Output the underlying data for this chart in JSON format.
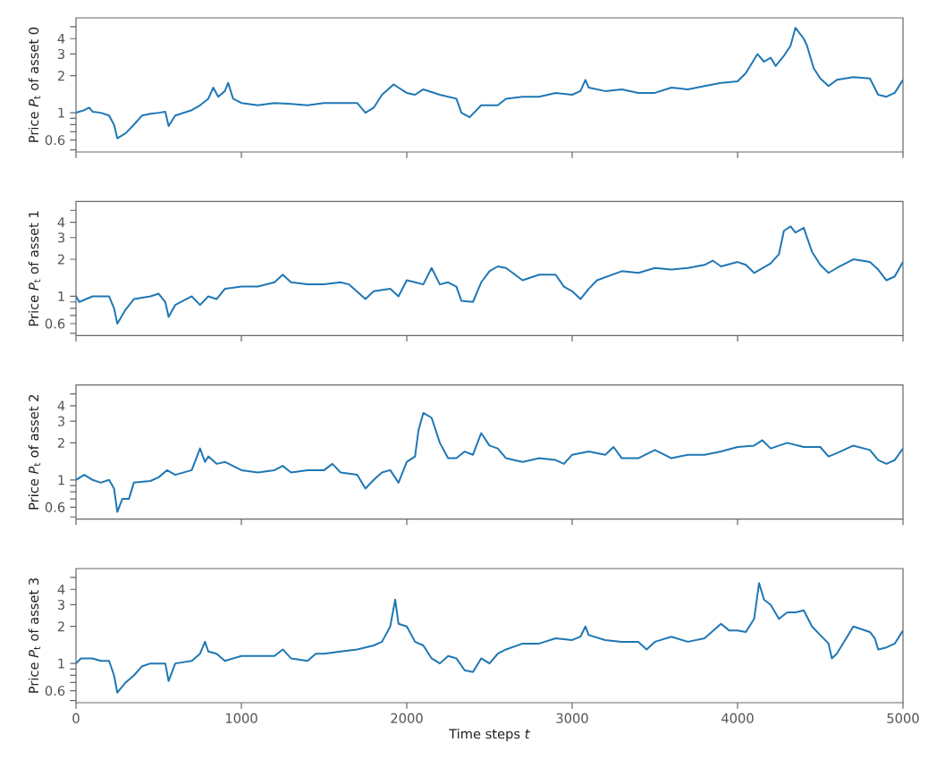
{
  "chart_data": [
    {
      "type": "line",
      "ylabel": "Price *P*$_{t}$ of asset 0",
      "color": "#1f77b4",
      "log": "y",
      "tick_labels": "y",
      "xlim": [
        0,
        5000
      ],
      "xticks": [
        0,
        1000,
        2000,
        3000,
        4000,
        5000
      ],
      "ylim": [
        0.48,
        5.9
      ],
      "yticks": [
        {
          "value": 0.5,
          "label": null
        },
        0.6,
        {
          "value": 0.7,
          "label": null
        },
        {
          "value": 0.8,
          "label": null
        },
        {
          "value": 0.9,
          "label": null
        },
        1,
        2,
        3,
        4,
        {
          "value": 5,
          "label": null
        }
      ],
      "x": [
        0,
        50,
        80,
        100,
        150,
        200,
        230,
        250,
        300,
        350,
        400,
        450,
        500,
        540,
        560,
        600,
        700,
        750,
        800,
        830,
        860,
        900,
        920,
        950,
        1000,
        1100,
        1200,
        1300,
        1400,
        1500,
        1600,
        1700,
        1750,
        1800,
        1850,
        1920,
        1950,
        2000,
        2050,
        2100,
        2200,
        2300,
        2330,
        2380,
        2450,
        2550,
        2600,
        2700,
        2800,
        2900,
        3000,
        3050,
        3080,
        3100,
        3200,
        3300,
        3400,
        3500,
        3600,
        3700,
        3800,
        3900,
        4000,
        4050,
        4120,
        4160,
        4200,
        4230,
        4280,
        4320,
        4350,
        4400,
        4420,
        4460,
        4500,
        4550,
        4600,
        4700,
        4800,
        4850,
        4900,
        4950,
        5000
      ],
      "values": [
        1.0,
        1.05,
        1.1,
        1.02,
        1.0,
        0.95,
        0.8,
        0.62,
        0.68,
        0.8,
        0.95,
        0.98,
        1.0,
        1.02,
        0.78,
        0.95,
        1.05,
        1.15,
        1.3,
        1.6,
        1.35,
        1.5,
        1.75,
        1.3,
        1.2,
        1.15,
        1.2,
        1.18,
        1.15,
        1.2,
        1.2,
        1.2,
        1.0,
        1.1,
        1.4,
        1.7,
        1.6,
        1.45,
        1.4,
        1.55,
        1.4,
        1.3,
        1.0,
        0.92,
        1.15,
        1.15,
        1.3,
        1.35,
        1.35,
        1.45,
        1.4,
        1.5,
        1.85,
        1.6,
        1.5,
        1.55,
        1.45,
        1.45,
        1.6,
        1.55,
        1.65,
        1.75,
        1.8,
        2.1,
        3.0,
        2.6,
        2.8,
        2.4,
        2.9,
        3.5,
        4.9,
        4.0,
        3.5,
        2.3,
        1.9,
        1.65,
        1.85,
        1.95,
        1.9,
        1.4,
        1.35,
        1.45,
        1.85
      ]
    },
    {
      "type": "line",
      "ylabel": "Price *P*$_{t}$ of asset 1",
      "color": "#1f77b4",
      "log": "y",
      "tick_labels": "y",
      "xlim": [
        0,
        5000
      ],
      "xticks": [
        0,
        1000,
        2000,
        3000,
        4000,
        5000
      ],
      "ylim": [
        0.48,
        5.9
      ],
      "yticks": [
        {
          "value": 0.5,
          "label": null
        },
        0.6,
        {
          "value": 0.7,
          "label": null
        },
        {
          "value": 0.8,
          "label": null
        },
        {
          "value": 0.9,
          "label": null
        },
        1,
        2,
        3,
        4,
        {
          "value": 5,
          "label": null
        }
      ],
      "x": [
        0,
        20,
        100,
        200,
        230,
        250,
        300,
        350,
        450,
        500,
        540,
        560,
        600,
        700,
        750,
        800,
        850,
        900,
        1000,
        1100,
        1200,
        1250,
        1300,
        1400,
        1500,
        1600,
        1650,
        1750,
        1800,
        1900,
        1950,
        2000,
        2050,
        2100,
        2150,
        2200,
        2250,
        2300,
        2330,
        2400,
        2450,
        2500,
        2550,
        2600,
        2700,
        2800,
        2900,
        2950,
        3000,
        3050,
        3100,
        3150,
        3300,
        3400,
        3500,
        3600,
        3700,
        3800,
        3850,
        3900,
        4000,
        4050,
        4100,
        4200,
        4250,
        4280,
        4320,
        4350,
        4400,
        4450,
        4500,
        4550,
        4600,
        4700,
        4800,
        4850,
        4900,
        4950,
        5000
      ],
      "values": [
        1.0,
        0.9,
        1.0,
        1.0,
        0.8,
        0.6,
        0.78,
        0.95,
        1.0,
        1.05,
        0.9,
        0.68,
        0.85,
        1.0,
        0.85,
        1.0,
        0.95,
        1.15,
        1.2,
        1.2,
        1.3,
        1.5,
        1.3,
        1.25,
        1.25,
        1.3,
        1.25,
        0.95,
        1.1,
        1.15,
        1.0,
        1.35,
        1.3,
        1.25,
        1.7,
        1.25,
        1.3,
        1.2,
        0.92,
        0.9,
        1.3,
        1.6,
        1.75,
        1.7,
        1.35,
        1.5,
        1.5,
        1.2,
        1.1,
        0.95,
        1.15,
        1.35,
        1.6,
        1.55,
        1.7,
        1.65,
        1.7,
        1.8,
        1.95,
        1.75,
        1.9,
        1.8,
        1.55,
        1.85,
        2.2,
        3.4,
        3.7,
        3.3,
        3.6,
        2.3,
        1.8,
        1.55,
        1.7,
        2.0,
        1.9,
        1.65,
        1.35,
        1.45,
        1.9
      ]
    },
    {
      "type": "line",
      "ylabel": "Price *P*$_{t}$ of asset 2",
      "color": "#1f77b4",
      "log": "y",
      "tick_labels": "y",
      "xlim": [
        0,
        5000
      ],
      "xticks": [
        0,
        1000,
        2000,
        3000,
        4000,
        5000
      ],
      "ylim": [
        0.48,
        5.9
      ],
      "yticks": [
        {
          "value": 0.5,
          "label": null
        },
        0.6,
        {
          "value": 0.7,
          "label": null
        },
        {
          "value": 0.8,
          "label": null
        },
        {
          "value": 0.9,
          "label": null
        },
        1,
        2,
        3,
        4,
        {
          "value": 5,
          "label": null
        }
      ],
      "x": [
        0,
        50,
        100,
        150,
        200,
        230,
        250,
        280,
        320,
        350,
        450,
        500,
        550,
        600,
        700,
        750,
        780,
        800,
        850,
        900,
        1000,
        1100,
        1200,
        1250,
        1300,
        1400,
        1500,
        1550,
        1600,
        1700,
        1750,
        1800,
        1850,
        1900,
        1950,
        2000,
        2050,
        2070,
        2100,
        2150,
        2200,
        2250,
        2300,
        2350,
        2400,
        2450,
        2500,
        2550,
        2600,
        2700,
        2800,
        2900,
        2950,
        3000,
        3100,
        3200,
        3250,
        3300,
        3400,
        3500,
        3600,
        3700,
        3800,
        3900,
        4000,
        4100,
        4150,
        4200,
        4300,
        4400,
        4500,
        4550,
        4600,
        4700,
        4800,
        4850,
        4900,
        4950,
        5000
      ],
      "values": [
        1.0,
        1.1,
        1.0,
        0.95,
        1.0,
        0.85,
        0.55,
        0.7,
        0.7,
        0.95,
        0.98,
        1.05,
        1.2,
        1.1,
        1.2,
        1.8,
        1.4,
        1.55,
        1.35,
        1.4,
        1.2,
        1.15,
        1.2,
        1.3,
        1.15,
        1.2,
        1.2,
        1.35,
        1.15,
        1.1,
        0.85,
        1.0,
        1.15,
        1.2,
        0.95,
        1.4,
        1.55,
        2.5,
        3.5,
        3.2,
        2.0,
        1.5,
        1.5,
        1.7,
        1.6,
        2.4,
        1.9,
        1.8,
        1.5,
        1.4,
        1.5,
        1.45,
        1.35,
        1.6,
        1.7,
        1.6,
        1.85,
        1.5,
        1.5,
        1.75,
        1.5,
        1.6,
        1.6,
        1.7,
        1.85,
        1.9,
        2.1,
        1.8,
        2.0,
        1.85,
        1.85,
        1.55,
        1.65,
        1.9,
        1.75,
        1.45,
        1.35,
        1.45,
        1.8
      ]
    },
    {
      "type": "line",
      "ylabel": "Price *P*$_{t}$ of asset 3",
      "xlabel": "Time steps *t*",
      "color": "#1f77b4",
      "log": "y",
      "xlim": [
        0,
        5000
      ],
      "xticks": [
        0,
        1000,
        2000,
        3000,
        4000,
        5000
      ],
      "ylim": [
        0.48,
        5.9
      ],
      "yticks": [
        {
          "value": 0.5,
          "label": null
        },
        0.6,
        {
          "value": 0.7,
          "label": null
        },
        {
          "value": 0.8,
          "label": null
        },
        {
          "value": 0.9,
          "label": null
        },
        1,
        2,
        3,
        4,
        {
          "value": 5,
          "label": null
        }
      ],
      "x": [
        0,
        30,
        100,
        150,
        200,
        230,
        250,
        300,
        350,
        400,
        450,
        500,
        540,
        560,
        600,
        700,
        750,
        780,
        800,
        850,
        900,
        1000,
        1100,
        1200,
        1250,
        1300,
        1400,
        1450,
        1500,
        1600,
        1700,
        1800,
        1850,
        1900,
        1930,
        1950,
        2000,
        2050,
        2100,
        2150,
        2200,
        2250,
        2300,
        2350,
        2400,
        2450,
        2500,
        2550,
        2600,
        2700,
        2800,
        2900,
        3000,
        3050,
        3080,
        3100,
        3200,
        3300,
        3400,
        3450,
        3500,
        3600,
        3700,
        3800,
        3900,
        3950,
        4000,
        4050,
        4100,
        4130,
        4160,
        4200,
        4250,
        4300,
        4350,
        4400,
        4450,
        4500,
        4550,
        4570,
        4600,
        4700,
        4800,
        4830,
        4850,
        4900,
        4950,
        5000
      ],
      "values": [
        1.0,
        1.1,
        1.1,
        1.05,
        1.05,
        0.8,
        0.58,
        0.7,
        0.8,
        0.95,
        1.0,
        1.0,
        1.0,
        0.72,
        1.0,
        1.05,
        1.2,
        1.5,
        1.25,
        1.2,
        1.05,
        1.15,
        1.15,
        1.15,
        1.3,
        1.1,
        1.05,
        1.2,
        1.2,
        1.25,
        1.3,
        1.4,
        1.5,
        2.0,
        3.3,
        2.1,
        2.0,
        1.5,
        1.4,
        1.1,
        1.0,
        1.15,
        1.1,
        0.88,
        0.85,
        1.1,
        1.0,
        1.2,
        1.3,
        1.45,
        1.45,
        1.6,
        1.55,
        1.65,
        2.0,
        1.7,
        1.55,
        1.5,
        1.5,
        1.3,
        1.5,
        1.65,
        1.5,
        1.6,
        2.1,
        1.85,
        1.85,
        1.8,
        2.3,
        4.5,
        3.3,
        3.0,
        2.3,
        2.6,
        2.6,
        2.7,
        2.0,
        1.7,
        1.45,
        1.1,
        1.2,
        2.0,
        1.8,
        1.6,
        1.3,
        1.35,
        1.45,
        1.85
      ]
    }
  ]
}
